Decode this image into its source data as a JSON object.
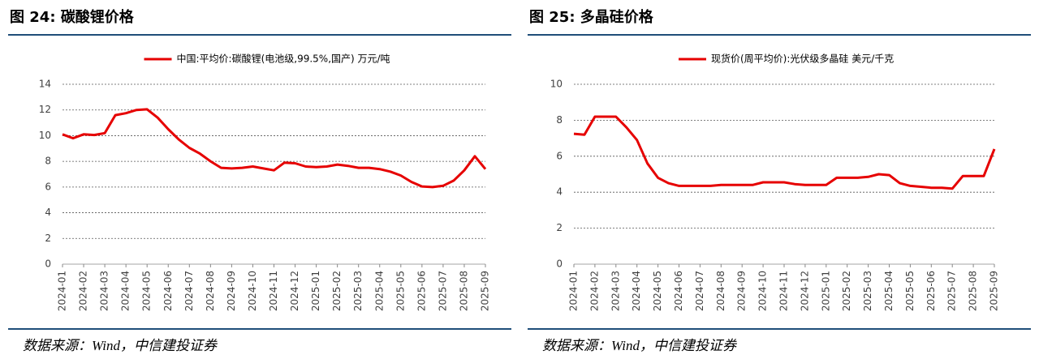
{
  "chart_data": [
    {
      "type": "line",
      "title": "图 24: 碳酸锂价格",
      "source": "数据来源：Wind，中信建投证券",
      "categories": [
        "2024-01",
        null,
        "2024-02",
        null,
        "2024-03",
        null,
        "2024-04",
        null,
        "2024-05",
        null,
        "2024-06",
        null,
        "2024-07",
        null,
        "2024-08",
        null,
        "2024-09",
        null,
        "2024-10",
        null,
        "2024-11",
        null,
        "2024-12",
        null,
        "2025-01",
        null,
        "2025-02",
        null,
        "2025-03",
        null,
        "2025-04",
        null,
        "2025-05",
        null,
        "2025-06",
        null,
        "2025-07",
        null,
        "2025-08",
        null,
        "2025-09"
      ],
      "series": [
        {
          "name": "中国:平均价:碳酸锂(电池级,99.5%,国产) 万元/吨",
          "color": "#e60000",
          "values": [
            10.1,
            9.8,
            10.1,
            10.05,
            10.2,
            11.6,
            11.75,
            12.0,
            12.05,
            11.4,
            10.5,
            9.7,
            9.05,
            8.6,
            8.0,
            7.5,
            7.45,
            7.5,
            7.6,
            7.45,
            7.3,
            7.9,
            7.85,
            7.6,
            7.55,
            7.6,
            7.75,
            7.65,
            7.5,
            7.5,
            7.4,
            7.2,
            6.9,
            6.4,
            6.05,
            6.0,
            6.1,
            6.5,
            7.3,
            8.4,
            7.4
          ]
        }
      ],
      "ylim": [
        0,
        14
      ],
      "yticks": [
        0,
        2,
        4,
        6,
        8,
        10,
        12,
        14
      ],
      "grid": true,
      "legend": "top"
    },
    {
      "type": "line",
      "title": "图 25: 多晶硅价格",
      "source": "数据来源：Wind，中信建投证券",
      "categories": [
        "2024-01",
        null,
        "2024-02",
        null,
        "2024-03",
        null,
        "2024-04",
        null,
        "2024-05",
        null,
        "2024-06",
        null,
        "2024-07",
        null,
        "2024-08",
        null,
        "2024-09",
        null,
        "2024-10",
        null,
        "2024-11",
        null,
        "2024-12",
        null,
        "2025-01",
        null,
        "2025-02",
        null,
        "2025-03",
        null,
        "2025-04",
        null,
        "2025-05",
        null,
        "2025-06",
        null,
        "2025-07",
        null,
        "2025-08",
        null,
        "2025-09"
      ],
      "series": [
        {
          "name": "现货价(周平均价):光伏级多晶硅 美元/千克",
          "color": "#e60000",
          "values": [
            7.25,
            7.2,
            8.2,
            8.2,
            8.2,
            7.6,
            6.9,
            5.6,
            4.8,
            4.5,
            4.35,
            4.35,
            4.35,
            4.35,
            4.4,
            4.4,
            4.4,
            4.4,
            4.55,
            4.55,
            4.55,
            4.45,
            4.4,
            4.4,
            4.4,
            4.8,
            4.8,
            4.8,
            4.85,
            5.0,
            4.95,
            4.5,
            4.35,
            4.3,
            4.25,
            4.25,
            4.2,
            4.9,
            4.9,
            4.9,
            6.4
          ]
        }
      ],
      "ylim": [
        0,
        10
      ],
      "yticks": [
        0,
        2,
        4,
        6,
        8,
        10
      ],
      "grid": true,
      "legend": "top"
    }
  ]
}
